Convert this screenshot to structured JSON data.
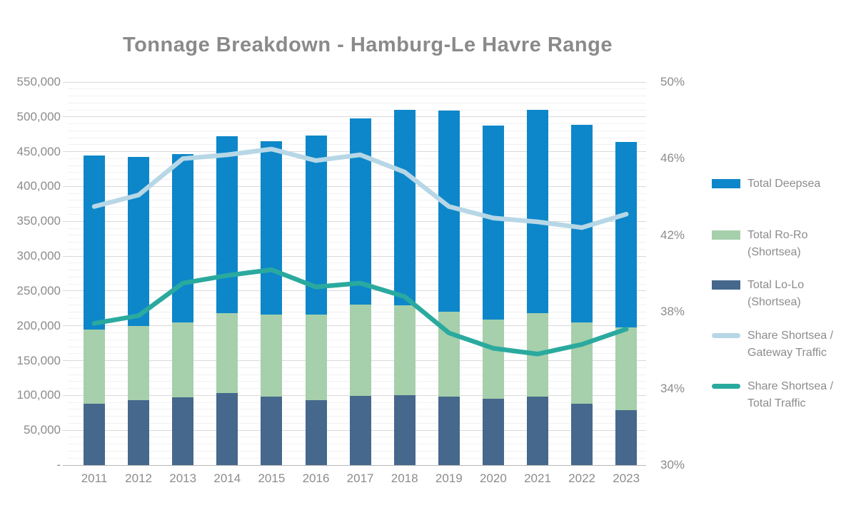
{
  "title": "Tonnage Breakdown - Hamburg-Le Havre Range",
  "chart_data": {
    "type": "combo stacked-bar + line",
    "categories": [
      "2011",
      "2012",
      "2013",
      "2014",
      "2015",
      "2016",
      "2017",
      "2018",
      "2019",
      "2020",
      "2021",
      "2022",
      "2023"
    ],
    "bar_series": [
      {
        "name": "Total Lo-Lo (Shortsea)",
        "color": "#45688c",
        "stack_order": 1,
        "values": [
          88000,
          93000,
          97000,
          103000,
          98000,
          93000,
          99000,
          100000,
          98000,
          95000,
          98000,
          88000,
          79000
        ]
      },
      {
        "name": "Total Ro-Ro (Shortsea)",
        "color": "#a6cfab",
        "stack_order": 2,
        "values": [
          107000,
          107000,
          108000,
          115000,
          118000,
          123000,
          131000,
          129000,
          122000,
          114000,
          120000,
          117000,
          119000
        ]
      },
      {
        "name": "Total Deepsea",
        "color": "#0d87c9",
        "stack_order": 3,
        "values": [
          249000,
          242000,
          242000,
          254000,
          249000,
          257000,
          268000,
          281000,
          289000,
          279000,
          292000,
          284000,
          266000
        ]
      }
    ],
    "bar_totals": [
      444000,
      442000,
      447000,
      472000,
      465000,
      473000,
      498000,
      510000,
      509000,
      488000,
      510000,
      489000,
      464000
    ],
    "line_series": [
      {
        "name": "Share Shortsea / Gateway Traffic",
        "color": "#b7d7e6",
        "axis": "right",
        "values": [
          43.5,
          44.1,
          46.0,
          46.2,
          46.5,
          45.9,
          46.2,
          45.3,
          43.5,
          42.9,
          42.7,
          42.4,
          43.1
        ]
      },
      {
        "name": "Share Shortsea / Total Traffic",
        "color": "#2aaa9f",
        "axis": "right",
        "values": [
          37.4,
          37.8,
          39.5,
          39.9,
          40.2,
          39.3,
          39.5,
          38.8,
          36.9,
          36.1,
          35.8,
          36.3,
          37.1
        ]
      }
    ],
    "left_axis": {
      "min": 0,
      "max": 550000,
      "major_step": 50000,
      "minor_step": 10000,
      "labels": [
        "550,000",
        "500,000",
        "450,000",
        "400,000",
        "350,000",
        "300,000",
        "250,000",
        "200,000",
        "150,000",
        "100,000",
        "50,000",
        "-"
      ]
    },
    "right_axis": {
      "min": 30,
      "max": 50,
      "labels": [
        "50%",
        "46%",
        "42%",
        "38%",
        "34%",
        "30%"
      ],
      "label_values": [
        50,
        46,
        42,
        38,
        34,
        30
      ]
    },
    "grid": "major + minor horizontal gridlines",
    "legend_position": "right"
  },
  "legend": {
    "items": [
      {
        "line1": "Total Deepsea",
        "line2": "",
        "color": "#0d87c9",
        "swatch": "rect"
      },
      {
        "line1": "Total Ro-Ro",
        "line2": "(Shortsea)",
        "color": "#a6cfab",
        "swatch": "rect"
      },
      {
        "line1": "Total Lo-Lo",
        "line2": "(Shortsea)",
        "color": "#45688c",
        "swatch": "rect"
      },
      {
        "line1": "Share Shortsea /",
        "line2": "Gateway Traffic",
        "color": "#b7d7e6",
        "swatch": "line"
      },
      {
        "line1": "Share Shortsea /",
        "line2": "Total Traffic",
        "color": "#2aaa9f",
        "swatch": "line"
      }
    ]
  }
}
